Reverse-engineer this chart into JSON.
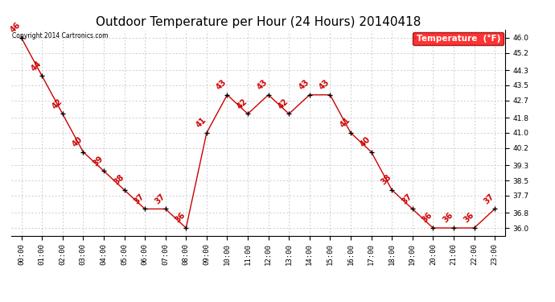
{
  "title": "Outdoor Temperature per Hour (24 Hours) 20140418",
  "copyright": "Copyright 2014 Cartronics.com",
  "legend_label": "Temperature  (°F)",
  "hours": [
    "00:00",
    "01:00",
    "02:00",
    "03:00",
    "04:00",
    "05:00",
    "06:00",
    "07:00",
    "08:00",
    "09:00",
    "10:00",
    "11:00",
    "12:00",
    "13:00",
    "14:00",
    "15:00",
    "16:00",
    "17:00",
    "18:00",
    "19:00",
    "20:00",
    "21:00",
    "22:00",
    "23:00"
  ],
  "temps": [
    46,
    44,
    42,
    40,
    39,
    38,
    37,
    37,
    36,
    41,
    43,
    42,
    43,
    42,
    43,
    43,
    41,
    40,
    38,
    37,
    36,
    36,
    36,
    37
  ],
  "ylim": [
    35.6,
    46.4
  ],
  "yticks": [
    36.0,
    36.8,
    37.7,
    38.5,
    39.3,
    40.2,
    41.0,
    41.8,
    42.7,
    43.5,
    44.3,
    45.2,
    46.0
  ],
  "line_color": "#cc0000",
  "marker_color": "#000000",
  "bg_color": "#ffffff",
  "grid_color": "#bbbbbb",
  "title_fontsize": 11,
  "label_fontsize": 6.5,
  "annot_fontsize": 7,
  "fig_width": 6.9,
  "fig_height": 3.75,
  "fig_dpi": 100
}
